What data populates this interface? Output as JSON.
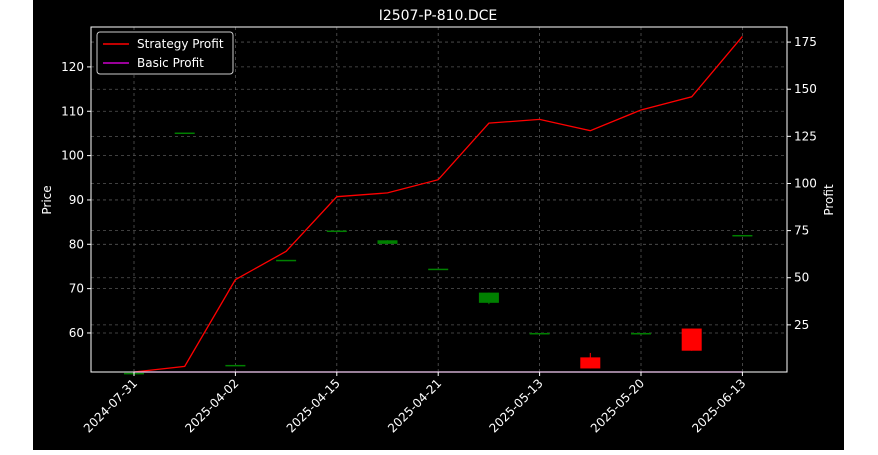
{
  "chart_data": {
    "type": "candlestick",
    "title": "I2507-P-810.DCE",
    "xlabel": "",
    "ylabel": "Price",
    "ylabel_right": "Profit",
    "categories": [
      "2024-07-31",
      "",
      "2025-04-02",
      "",
      "2025-04-15",
      "",
      "2025-04-21",
      "",
      "2025-05-13",
      "",
      "2025-05-20",
      "",
      "2025-06-13"
    ],
    "xtick_labels": [
      "2024-07-31",
      "2025-04-02",
      "2025-04-15",
      "2025-04-21",
      "2025-05-13",
      "2025-05-20",
      "2025-06-13"
    ],
    "ylim": [
      51.2,
      129
    ],
    "ylim_right": [
      0,
      183
    ],
    "yticks": [
      60,
      70,
      80,
      90,
      100,
      110,
      120
    ],
    "yticks_right": [
      25,
      50,
      75,
      100,
      125,
      150,
      175
    ],
    "grid": true,
    "legend_position": "top-left",
    "legend": [
      "Strategy Profit",
      "Basic Profit"
    ],
    "candles": [
      {
        "open": 51.0,
        "close": 51.0,
        "high": 51.0,
        "low": 51.0
      },
      {
        "open": 105.2,
        "close": 105.2,
        "high": 105.2,
        "low": 105.2
      },
      {
        "open": 52.8,
        "close": 52.8,
        "high": 52.8,
        "low": 52.8
      },
      {
        "open": 76.5,
        "close": 76.5,
        "high": 76.5,
        "low": 76.5
      },
      {
        "open": 83.1,
        "close": 83.1,
        "high": 83.1,
        "low": 83.1
      },
      {
        "open": 80.1,
        "close": 80.9,
        "high": 80.9,
        "low": 80.1
      },
      {
        "open": 74.5,
        "close": 74.5,
        "high": 74.5,
        "low": 74.5
      },
      {
        "open": 66.8,
        "close": 69.1,
        "high": 69.1,
        "low": 66.5
      },
      {
        "open": 59.7,
        "close": 60.0,
        "high": 60.0,
        "low": 59.7
      },
      {
        "open": 54.5,
        "close": 52.0,
        "high": 55.5,
        "low": 52.0
      },
      {
        "open": 60.0,
        "close": 60.0,
        "high": 60.0,
        "low": 60.0
      },
      {
        "open": 61.0,
        "close": 56.0,
        "high": 61.0,
        "low": 56.0
      },
      {
        "open": 82.1,
        "close": 82.1,
        "high": 82.1,
        "low": 82.1
      }
    ],
    "series": [
      {
        "name": "Strategy Profit",
        "axis": "right",
        "values": [
          0,
          3,
          49,
          64,
          93,
          95,
          102,
          132,
          134,
          128,
          139,
          146,
          178
        ]
      },
      {
        "name": "Basic Profit",
        "axis": "right",
        "values": [
          0,
          0,
          0,
          0,
          0,
          0,
          0,
          0,
          0,
          0,
          0,
          0,
          0
        ]
      }
    ],
    "colors": {
      "background": "#000000",
      "strategy_line": "#ff0000",
      "basic_line": "#cc00cc",
      "candle_up": "#008000",
      "candle_down": "#ff0000",
      "grid": "#555555"
    }
  }
}
